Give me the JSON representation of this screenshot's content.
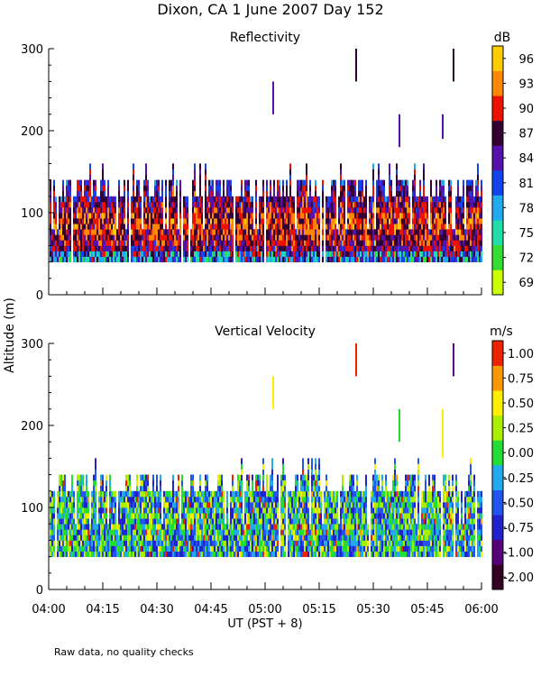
{
  "figure": {
    "title": "Dixon, CA  1 June 2007  Day 152",
    "ylabel": "Altitude (m)",
    "xlabel": "UT  (PST + 8)",
    "footnote": "Raw data, no quality checks"
  },
  "chart_data": [
    {
      "type": "heatmap",
      "title": "Reflectivity",
      "xlabel": "UT  (PST + 8)",
      "ylabel": "Altitude (m)",
      "x_ticks": [
        "04:00",
        "04:15",
        "04:30",
        "04:45",
        "05:00",
        "05:15",
        "05:30",
        "05:45",
        "06:00"
      ],
      "xlim_minutes_ut": [
        240,
        360
      ],
      "y_ticks": [
        "0",
        "100",
        "200",
        "300"
      ],
      "ylim": [
        0,
        300
      ],
      "colorbar": {
        "unit": "dB",
        "tick_labels": [
          "96",
          "93",
          "90",
          "87",
          "84",
          "81",
          "78",
          "75",
          "72",
          "69"
        ],
        "range": [
          67.5,
          99
        ],
        "colors": [
          "#ccff00",
          "#33dd33",
          "#22ddaa",
          "#22aaee",
          "#1144ee",
          "#5511aa",
          "#330033",
          "#ee1100",
          "#ff8800",
          "#ffcc00"
        ]
      },
      "data_description": {
        "echo_base_m": 40,
        "echo_top_typical_m": [
          120,
          140
        ],
        "echo_top_max_m": 180,
        "core_value_range_db": [
          84,
          93
        ],
        "isolated_spikes": [
          {
            "time_minutes": 302,
            "alt_range_m": [
              220,
              260
            ]
          },
          {
            "time_minutes": 325,
            "alt_range_m": [
              260,
              300
            ]
          },
          {
            "time_minutes": 337,
            "alt_range_m": [
              180,
              220
            ]
          },
          {
            "time_minutes": 349,
            "alt_range_m": [
              190,
              220
            ]
          },
          {
            "time_minutes": 352,
            "alt_range_m": [
              260,
              300
            ]
          }
        ]
      }
    },
    {
      "type": "heatmap",
      "title": "Vertical Velocity",
      "xlabel": "UT  (PST + 8)",
      "ylabel": "Altitude (m)",
      "x_ticks": [
        "04:00",
        "04:15",
        "04:30",
        "04:45",
        "05:00",
        "05:15",
        "05:30",
        "05:45",
        "06:00"
      ],
      "xlim_minutes_ut": [
        240,
        360
      ],
      "y_ticks": [
        "0",
        "100",
        "200",
        "300"
      ],
      "ylim": [
        0,
        300
      ],
      "colorbar": {
        "unit": "m/s",
        "tick_labels": [
          "1.00",
          "0.75",
          "0.50",
          "0.25",
          "0.00",
          "-0.25",
          "-0.50",
          "-0.75",
          "-1.00",
          "-2.00"
        ],
        "range": [
          -2.0,
          1.125
        ],
        "colors": [
          "#330022",
          "#550077",
          "#2222cc",
          "#2255ee",
          "#22aaee",
          "#22dd33",
          "#aaee00",
          "#ffee00",
          "#ff9900",
          "#ee2200"
        ]
      },
      "data_description": {
        "echo_base_m": 40,
        "echo_top_typical_m": [
          120,
          140
        ],
        "echo_top_max_m": 200,
        "dominant_value_range_ms": [
          -0.75,
          0.5
        ],
        "isolated_spikes": [
          {
            "time_minutes": 302,
            "alt_range_m": [
              220,
              260
            ]
          },
          {
            "time_minutes": 325,
            "alt_range_m": [
              260,
              300
            ]
          },
          {
            "time_minutes": 337,
            "alt_range_m": [
              180,
              220
            ]
          },
          {
            "time_minutes": 349,
            "alt_range_m": [
              160,
              220
            ]
          },
          {
            "time_minutes": 352,
            "alt_range_m": [
              260,
              300
            ]
          }
        ]
      }
    }
  ]
}
